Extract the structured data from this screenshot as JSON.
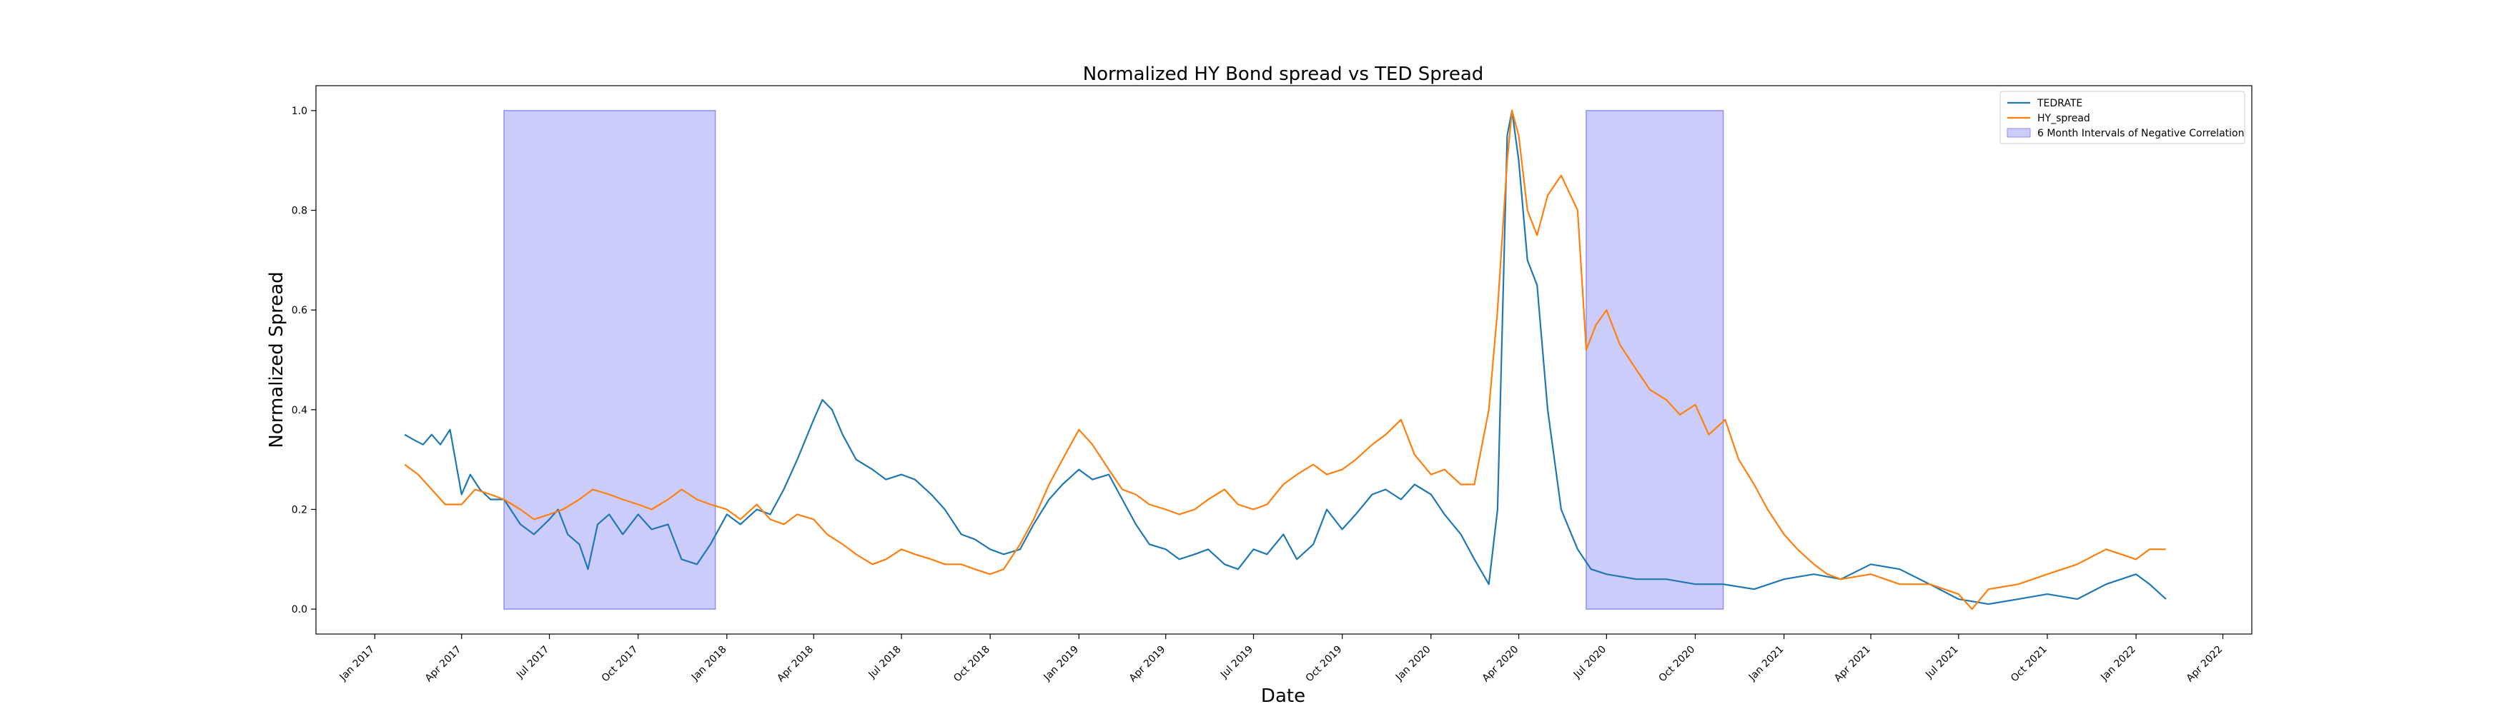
{
  "chart_data": {
    "type": "line",
    "title": "Normalized HY Bond spread vs TED Spread",
    "xlabel": "Date",
    "ylabel": "Normalized Spread",
    "xlim": [
      "2016-11-01",
      "2022-05-01"
    ],
    "ylim": [
      -0.05,
      1.05
    ],
    "x_ticks": [
      {
        "date": "2017-01-01",
        "label": "Jan 2017"
      },
      {
        "date": "2017-04-01",
        "label": "Apr 2017"
      },
      {
        "date": "2017-07-01",
        "label": "Jul 2017"
      },
      {
        "date": "2017-10-01",
        "label": "Oct 2017"
      },
      {
        "date": "2018-01-01",
        "label": "Jan 2018"
      },
      {
        "date": "2018-04-01",
        "label": "Apr 2018"
      },
      {
        "date": "2018-07-01",
        "label": "Jul 2018"
      },
      {
        "date": "2018-10-01",
        "label": "Oct 2018"
      },
      {
        "date": "2019-01-01",
        "label": "Jan 2019"
      },
      {
        "date": "2019-04-01",
        "label": "Apr 2019"
      },
      {
        "date": "2019-07-01",
        "label": "Jul 2019"
      },
      {
        "date": "2019-10-01",
        "label": "Oct 2019"
      },
      {
        "date": "2020-01-01",
        "label": "Jan 2020"
      },
      {
        "date": "2020-04-01",
        "label": "Apr 2020"
      },
      {
        "date": "2020-07-01",
        "label": "Jul 2020"
      },
      {
        "date": "2020-10-01",
        "label": "Oct 2020"
      },
      {
        "date": "2021-01-01",
        "label": "Jan 2021"
      },
      {
        "date": "2021-04-01",
        "label": "Apr 2021"
      },
      {
        "date": "2021-07-01",
        "label": "Jul 2021"
      },
      {
        "date": "2021-10-01",
        "label": "Oct 2021"
      },
      {
        "date": "2022-01-01",
        "label": "Jan 2022"
      },
      {
        "date": "2022-04-01",
        "label": "Apr 2022"
      }
    ],
    "y_ticks": [
      {
        "value": 0.0,
        "label": "0.0"
      },
      {
        "value": 0.2,
        "label": "0.2"
      },
      {
        "value": 0.4,
        "label": "0.4"
      },
      {
        "value": 0.6,
        "label": "0.6"
      },
      {
        "value": 0.8,
        "label": "0.8"
      },
      {
        "value": 1.0,
        "label": "1.0"
      }
    ],
    "grid": false,
    "legend_position": "top-right",
    "shaded_regions": {
      "name": "6 Month Intervals of Negative Correlation",
      "color": "#ccccfb",
      "edge_color": "#8f8ff2",
      "y_range": [
        0.0,
        1.0
      ],
      "intervals": [
        [
          "2017-05-15",
          "2017-12-20"
        ],
        [
          "2020-06-10",
          "2020-10-30"
        ]
      ]
    },
    "series": [
      {
        "name": "TEDRATE",
        "color": "#1f77b4",
        "points": [
          [
            "2017-02-01",
            0.35
          ],
          [
            "2017-02-10",
            0.34
          ],
          [
            "2017-02-20",
            0.33
          ],
          [
            "2017-03-01",
            0.35
          ],
          [
            "2017-03-10",
            0.33
          ],
          [
            "2017-03-20",
            0.36
          ],
          [
            "2017-04-01",
            0.23
          ],
          [
            "2017-04-10",
            0.27
          ],
          [
            "2017-04-20",
            0.24
          ],
          [
            "2017-05-01",
            0.22
          ],
          [
            "2017-05-15",
            0.22
          ],
          [
            "2017-06-01",
            0.17
          ],
          [
            "2017-06-15",
            0.15
          ],
          [
            "2017-07-01",
            0.18
          ],
          [
            "2017-07-10",
            0.2
          ],
          [
            "2017-07-20",
            0.15
          ],
          [
            "2017-08-01",
            0.13
          ],
          [
            "2017-08-10",
            0.08
          ],
          [
            "2017-08-20",
            0.17
          ],
          [
            "2017-09-01",
            0.19
          ],
          [
            "2017-09-15",
            0.15
          ],
          [
            "2017-10-01",
            0.19
          ],
          [
            "2017-10-15",
            0.16
          ],
          [
            "2017-11-01",
            0.17
          ],
          [
            "2017-11-15",
            0.1
          ],
          [
            "2017-12-01",
            0.09
          ],
          [
            "2017-12-15",
            0.13
          ],
          [
            "2018-01-01",
            0.19
          ],
          [
            "2018-01-15",
            0.17
          ],
          [
            "2018-02-01",
            0.2
          ],
          [
            "2018-02-15",
            0.19
          ],
          [
            "2018-03-01",
            0.24
          ],
          [
            "2018-03-15",
            0.3
          ],
          [
            "2018-04-01",
            0.38
          ],
          [
            "2018-04-10",
            0.42
          ],
          [
            "2018-04-20",
            0.4
          ],
          [
            "2018-05-01",
            0.35
          ],
          [
            "2018-05-15",
            0.3
          ],
          [
            "2018-06-01",
            0.28
          ],
          [
            "2018-06-15",
            0.26
          ],
          [
            "2018-07-01",
            0.27
          ],
          [
            "2018-07-15",
            0.26
          ],
          [
            "2018-08-01",
            0.23
          ],
          [
            "2018-08-15",
            0.2
          ],
          [
            "2018-09-01",
            0.15
          ],
          [
            "2018-09-15",
            0.14
          ],
          [
            "2018-10-01",
            0.12
          ],
          [
            "2018-10-15",
            0.11
          ],
          [
            "2018-11-01",
            0.12
          ],
          [
            "2018-11-15",
            0.17
          ],
          [
            "2018-12-01",
            0.22
          ],
          [
            "2018-12-15",
            0.25
          ],
          [
            "2019-01-01",
            0.28
          ],
          [
            "2019-01-15",
            0.26
          ],
          [
            "2019-02-01",
            0.27
          ],
          [
            "2019-02-15",
            0.22
          ],
          [
            "2019-03-01",
            0.17
          ],
          [
            "2019-03-15",
            0.13
          ],
          [
            "2019-04-01",
            0.12
          ],
          [
            "2019-04-15",
            0.1
          ],
          [
            "2019-05-01",
            0.11
          ],
          [
            "2019-05-15",
            0.12
          ],
          [
            "2019-06-01",
            0.09
          ],
          [
            "2019-06-15",
            0.08
          ],
          [
            "2019-07-01",
            0.12
          ],
          [
            "2019-07-15",
            0.11
          ],
          [
            "2019-08-01",
            0.15
          ],
          [
            "2019-08-15",
            0.1
          ],
          [
            "2019-09-01",
            0.13
          ],
          [
            "2019-09-15",
            0.2
          ],
          [
            "2019-10-01",
            0.16
          ],
          [
            "2019-10-15",
            0.19
          ],
          [
            "2019-11-01",
            0.23
          ],
          [
            "2019-11-15",
            0.24
          ],
          [
            "2019-12-01",
            0.22
          ],
          [
            "2019-12-15",
            0.25
          ],
          [
            "2020-01-01",
            0.23
          ],
          [
            "2020-01-15",
            0.19
          ],
          [
            "2020-02-01",
            0.15
          ],
          [
            "2020-02-15",
            0.1
          ],
          [
            "2020-03-01",
            0.05
          ],
          [
            "2020-03-10",
            0.2
          ],
          [
            "2020-03-20",
            0.95
          ],
          [
            "2020-03-25",
            1.0
          ],
          [
            "2020-04-01",
            0.9
          ],
          [
            "2020-04-10",
            0.7
          ],
          [
            "2020-04-20",
            0.65
          ],
          [
            "2020-05-01",
            0.4
          ],
          [
            "2020-05-15",
            0.2
          ],
          [
            "2020-06-01",
            0.12
          ],
          [
            "2020-06-15",
            0.08
          ],
          [
            "2020-07-01",
            0.07
          ],
          [
            "2020-08-01",
            0.06
          ],
          [
            "2020-09-01",
            0.06
          ],
          [
            "2020-10-01",
            0.05
          ],
          [
            "2020-10-30",
            0.05
          ],
          [
            "2020-12-01",
            0.04
          ],
          [
            "2021-01-01",
            0.06
          ],
          [
            "2021-02-01",
            0.07
          ],
          [
            "2021-03-01",
            0.06
          ],
          [
            "2021-04-01",
            0.09
          ],
          [
            "2021-05-01",
            0.08
          ],
          [
            "2021-06-01",
            0.05
          ],
          [
            "2021-07-01",
            0.02
          ],
          [
            "2021-08-01",
            0.01
          ],
          [
            "2021-09-01",
            0.02
          ],
          [
            "2021-10-01",
            0.03
          ],
          [
            "2021-11-01",
            0.02
          ],
          [
            "2021-12-01",
            0.05
          ],
          [
            "2022-01-01",
            0.07
          ],
          [
            "2022-01-15",
            0.05
          ],
          [
            "2022-02-01",
            0.02
          ]
        ]
      },
      {
        "name": "HY_spread",
        "color": "#ff7f0e",
        "points": [
          [
            "2017-02-01",
            0.29
          ],
          [
            "2017-02-15",
            0.27
          ],
          [
            "2017-03-01",
            0.24
          ],
          [
            "2017-03-15",
            0.21
          ],
          [
            "2017-04-01",
            0.21
          ],
          [
            "2017-04-15",
            0.24
          ],
          [
            "2017-05-01",
            0.23
          ],
          [
            "2017-05-15",
            0.22
          ],
          [
            "2017-06-01",
            0.2
          ],
          [
            "2017-06-15",
            0.18
          ],
          [
            "2017-07-01",
            0.19
          ],
          [
            "2017-07-15",
            0.2
          ],
          [
            "2017-08-01",
            0.22
          ],
          [
            "2017-08-15",
            0.24
          ],
          [
            "2017-09-01",
            0.23
          ],
          [
            "2017-09-15",
            0.22
          ],
          [
            "2017-10-01",
            0.21
          ],
          [
            "2017-10-15",
            0.2
          ],
          [
            "2017-11-01",
            0.22
          ],
          [
            "2017-11-15",
            0.24
          ],
          [
            "2017-12-01",
            0.22
          ],
          [
            "2017-12-15",
            0.21
          ],
          [
            "2018-01-01",
            0.2
          ],
          [
            "2018-01-15",
            0.18
          ],
          [
            "2018-02-01",
            0.21
          ],
          [
            "2018-02-15",
            0.18
          ],
          [
            "2018-03-01",
            0.17
          ],
          [
            "2018-03-15",
            0.19
          ],
          [
            "2018-04-01",
            0.18
          ],
          [
            "2018-04-15",
            0.15
          ],
          [
            "2018-05-01",
            0.13
          ],
          [
            "2018-05-15",
            0.11
          ],
          [
            "2018-06-01",
            0.09
          ],
          [
            "2018-06-15",
            0.1
          ],
          [
            "2018-07-01",
            0.12
          ],
          [
            "2018-07-15",
            0.11
          ],
          [
            "2018-08-01",
            0.1
          ],
          [
            "2018-08-15",
            0.09
          ],
          [
            "2018-09-01",
            0.09
          ],
          [
            "2018-09-15",
            0.08
          ],
          [
            "2018-10-01",
            0.07
          ],
          [
            "2018-10-15",
            0.08
          ],
          [
            "2018-11-01",
            0.13
          ],
          [
            "2018-11-15",
            0.18
          ],
          [
            "2018-12-01",
            0.25
          ],
          [
            "2018-12-15",
            0.3
          ],
          [
            "2019-01-01",
            0.36
          ],
          [
            "2019-01-15",
            0.33
          ],
          [
            "2019-02-01",
            0.28
          ],
          [
            "2019-02-15",
            0.24
          ],
          [
            "2019-03-01",
            0.23
          ],
          [
            "2019-03-15",
            0.21
          ],
          [
            "2019-04-01",
            0.2
          ],
          [
            "2019-04-15",
            0.19
          ],
          [
            "2019-05-01",
            0.2
          ],
          [
            "2019-05-15",
            0.22
          ],
          [
            "2019-06-01",
            0.24
          ],
          [
            "2019-06-15",
            0.21
          ],
          [
            "2019-07-01",
            0.2
          ],
          [
            "2019-07-15",
            0.21
          ],
          [
            "2019-08-01",
            0.25
          ],
          [
            "2019-08-15",
            0.27
          ],
          [
            "2019-09-01",
            0.29
          ],
          [
            "2019-09-15",
            0.27
          ],
          [
            "2019-10-01",
            0.28
          ],
          [
            "2019-10-15",
            0.3
          ],
          [
            "2019-11-01",
            0.33
          ],
          [
            "2019-11-15",
            0.35
          ],
          [
            "2019-12-01",
            0.38
          ],
          [
            "2019-12-15",
            0.31
          ],
          [
            "2020-01-01",
            0.27
          ],
          [
            "2020-01-15",
            0.28
          ],
          [
            "2020-02-01",
            0.25
          ],
          [
            "2020-02-15",
            0.25
          ],
          [
            "2020-03-01",
            0.4
          ],
          [
            "2020-03-10",
            0.6
          ],
          [
            "2020-03-20",
            0.9
          ],
          [
            "2020-03-25",
            1.0
          ],
          [
            "2020-04-01",
            0.95
          ],
          [
            "2020-04-10",
            0.8
          ],
          [
            "2020-04-20",
            0.75
          ],
          [
            "2020-05-01",
            0.83
          ],
          [
            "2020-05-15",
            0.87
          ],
          [
            "2020-06-01",
            0.8
          ],
          [
            "2020-06-10",
            0.52
          ],
          [
            "2020-06-20",
            0.57
          ],
          [
            "2020-07-01",
            0.6
          ],
          [
            "2020-07-15",
            0.53
          ],
          [
            "2020-08-01",
            0.48
          ],
          [
            "2020-08-15",
            0.44
          ],
          [
            "2020-09-01",
            0.42
          ],
          [
            "2020-09-15",
            0.39
          ],
          [
            "2020-10-01",
            0.41
          ],
          [
            "2020-10-15",
            0.35
          ],
          [
            "2020-11-01",
            0.38
          ],
          [
            "2020-11-15",
            0.3
          ],
          [
            "2020-12-01",
            0.25
          ],
          [
            "2020-12-15",
            0.2
          ],
          [
            "2021-01-01",
            0.15
          ],
          [
            "2021-01-15",
            0.12
          ],
          [
            "2021-02-01",
            0.09
          ],
          [
            "2021-02-15",
            0.07
          ],
          [
            "2021-03-01",
            0.06
          ],
          [
            "2021-04-01",
            0.07
          ],
          [
            "2021-05-01",
            0.05
          ],
          [
            "2021-06-01",
            0.05
          ],
          [
            "2021-07-01",
            0.03
          ],
          [
            "2021-07-15",
            0.0
          ],
          [
            "2021-08-01",
            0.04
          ],
          [
            "2021-09-01",
            0.05
          ],
          [
            "2021-10-01",
            0.07
          ],
          [
            "2021-11-01",
            0.09
          ],
          [
            "2021-12-01",
            0.12
          ],
          [
            "2022-01-01",
            0.1
          ],
          [
            "2022-01-15",
            0.12
          ],
          [
            "2022-02-01",
            0.12
          ]
        ]
      }
    ]
  }
}
